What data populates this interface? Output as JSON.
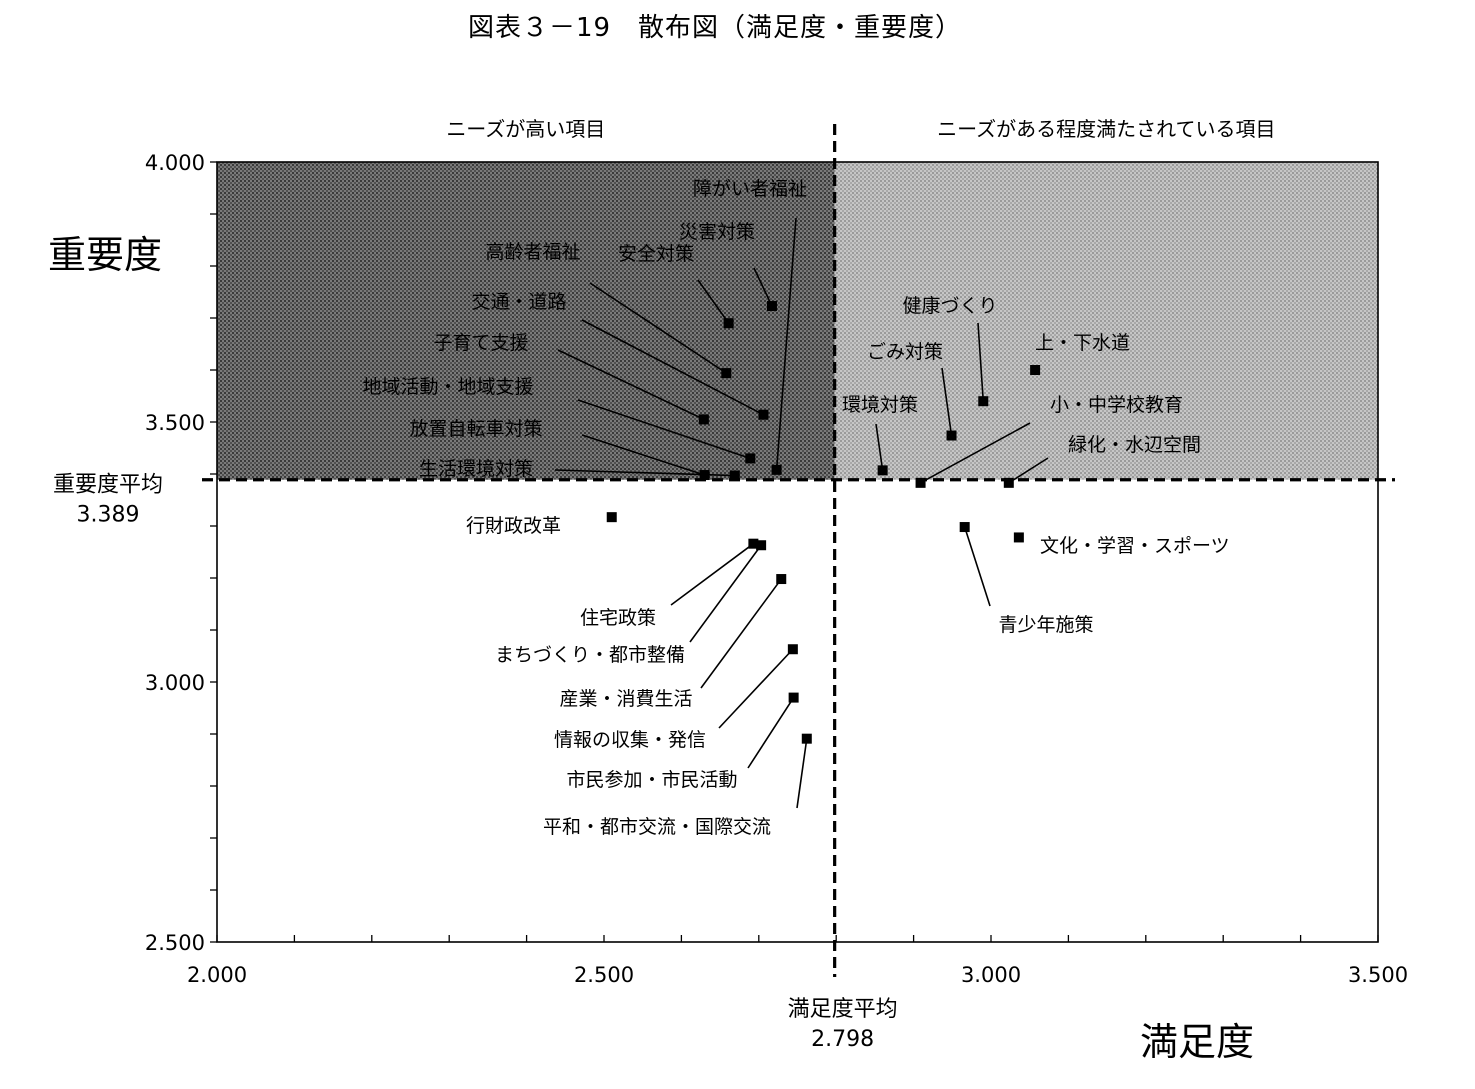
{
  "chart_data": {
    "type": "scatter",
    "title": "図表３－19　散布図（満足度・重要度）",
    "xlabel": "満足度",
    "ylabel": "重要度",
    "xlim": [
      2.0,
      3.5
    ],
    "ylim": [
      2.5,
      4.0
    ],
    "x_ticks": [
      "2.000",
      "2.500",
      "3.000",
      "3.500"
    ],
    "y_ticks": [
      "4.000",
      "3.500",
      "3.000",
      "2.500"
    ],
    "x_tick_values": [
      2.0,
      2.5,
      3.0,
      3.5
    ],
    "y_tick_values": [
      4.0,
      3.5,
      3.0,
      2.5
    ],
    "x_minor_step": 0.1,
    "y_minor_step": 0.1,
    "quadrant_labels": {
      "upper_left": "ニーズが高い項目",
      "upper_right": "ニーズがある程度満たされている項目"
    },
    "x_average": {
      "label": "満足度平均",
      "value_text": "2.798",
      "value": 2.798
    },
    "y_average": {
      "label": "重要度平均",
      "value_text": "3.389",
      "value": 3.389
    },
    "points": [
      {
        "name": "障がい者福祉",
        "x": 2.723,
        "y": 3.408
      },
      {
        "name": "災害対策",
        "x": 2.717,
        "y": 3.723
      },
      {
        "name": "安全対策",
        "x": 2.661,
        "y": 3.69
      },
      {
        "name": "高齢者福祉",
        "x": 2.658,
        "y": 3.594
      },
      {
        "name": "交通・道路",
        "x": 2.706,
        "y": 3.514
      },
      {
        "name": "子育て支援",
        "x": 2.629,
        "y": 3.505
      },
      {
        "name": "地域活動・地域支援",
        "x": 2.689,
        "y": 3.43
      },
      {
        "name": "放置自転車対策",
        "x": 2.63,
        "y": 3.398
      },
      {
        "name": "生活環境対策",
        "x": 2.669,
        "y": 3.397
      },
      {
        "name": "健康づくり",
        "x": 2.99,
        "y": 3.54
      },
      {
        "name": "ごみ対策",
        "x": 2.949,
        "y": 3.474
      },
      {
        "name": "上・下水道",
        "x": 3.057,
        "y": 3.6
      },
      {
        "name": "環境対策",
        "x": 2.86,
        "y": 3.407
      },
      {
        "name": "小・中学校教育",
        "x": 2.909,
        "y": 3.383
      },
      {
        "name": "緑化・水辺空間",
        "x": 3.023,
        "y": 3.383
      },
      {
        "name": "行財政改革",
        "x": 2.51,
        "y": 3.317
      },
      {
        "name": "住宅政策",
        "x": 2.693,
        "y": 3.266
      },
      {
        "name": "まちづくり・都市整備",
        "x": 2.703,
        "y": 3.263
      },
      {
        "name": "産業・消費生活",
        "x": 2.729,
        "y": 3.198
      },
      {
        "name": "情報の収集・発信",
        "x": 2.744,
        "y": 3.063
      },
      {
        "name": "市民参加・市民活動",
        "x": 2.745,
        "y": 2.97
      },
      {
        "name": "平和・都市交流・国際交流",
        "x": 2.762,
        "y": 2.891
      },
      {
        "name": "青少年施策",
        "x": 2.966,
        "y": 3.298
      },
      {
        "name": "文化・学習・スポーツ",
        "x": 3.036,
        "y": 3.278
      }
    ]
  }
}
